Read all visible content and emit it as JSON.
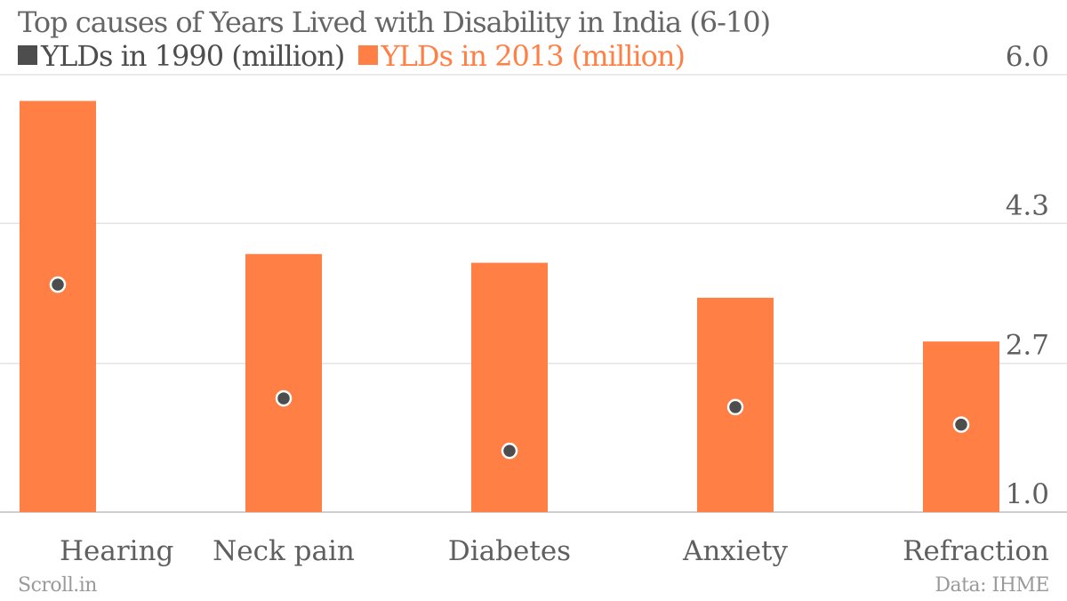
{
  "chart_data": {
    "type": "bar",
    "title": "Top causes of Years Lived with Disability in India (6-10)",
    "categories": [
      "Hearing",
      "Neck pain",
      "Diabetes",
      "Anxiety",
      "Refraction"
    ],
    "series": [
      {
        "name": "YLDs in 1990 (million)",
        "values": [
          3.6,
          2.3,
          1.7,
          2.2,
          2.0
        ],
        "color": "#4d4d4d",
        "style": "dot"
      },
      {
        "name": "YLDs in 2013 (million)",
        "values": [
          5.7,
          3.95,
          3.85,
          3.45,
          2.95
        ],
        "color": "#ff7f45",
        "style": "bar"
      }
    ],
    "yticks": [
      "1.0",
      "2.7",
      "4.3",
      "6.0"
    ],
    "ylim": [
      1.0,
      6.0
    ],
    "grid": true
  },
  "footer": {
    "source_left": "Scroll.in",
    "source_right": "Data: IHME"
  }
}
